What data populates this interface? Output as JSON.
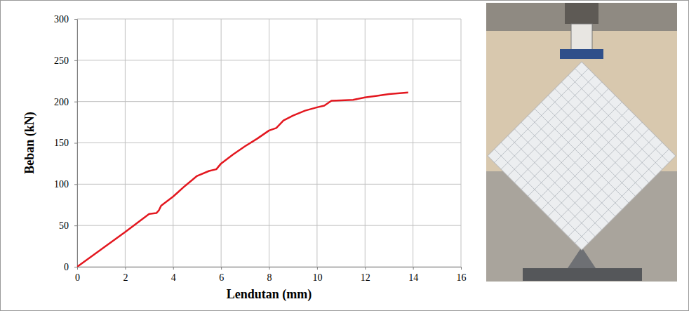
{
  "chart_data": {
    "type": "line",
    "x_label": "Lendutan (mm)",
    "y_label": "Beban (kN)",
    "xlim": [
      0,
      16
    ],
    "xticks": [
      0,
      2,
      4,
      6,
      8,
      10,
      12,
      14,
      16
    ],
    "ylim": [
      0,
      300
    ],
    "yticks": [
      0,
      50,
      100,
      150,
      200,
      250,
      300
    ],
    "grid": true,
    "x": [
      0,
      1,
      2,
      3,
      3.3,
      3.4,
      3.5,
      4,
      4.5,
      5,
      5.5,
      5.8,
      6,
      6.5,
      7,
      7.5,
      8,
      8.3,
      8.6,
      9,
      9.5,
      10,
      10.3,
      10.6,
      11,
      11.5,
      12,
      12.5,
      13,
      13.8
    ],
    "series": [
      {
        "color": "#e3171f",
        "line_style": "solid",
        "values": [
          0,
          21,
          42,
          64,
          65,
          68,
          74,
          85,
          98,
          110,
          116,
          118,
          125,
          136,
          146,
          155,
          165,
          168,
          177,
          183,
          189,
          193,
          195,
          201,
          201.5,
          202,
          205,
          207,
          209,
          211
        ]
      }
    ]
  }
}
